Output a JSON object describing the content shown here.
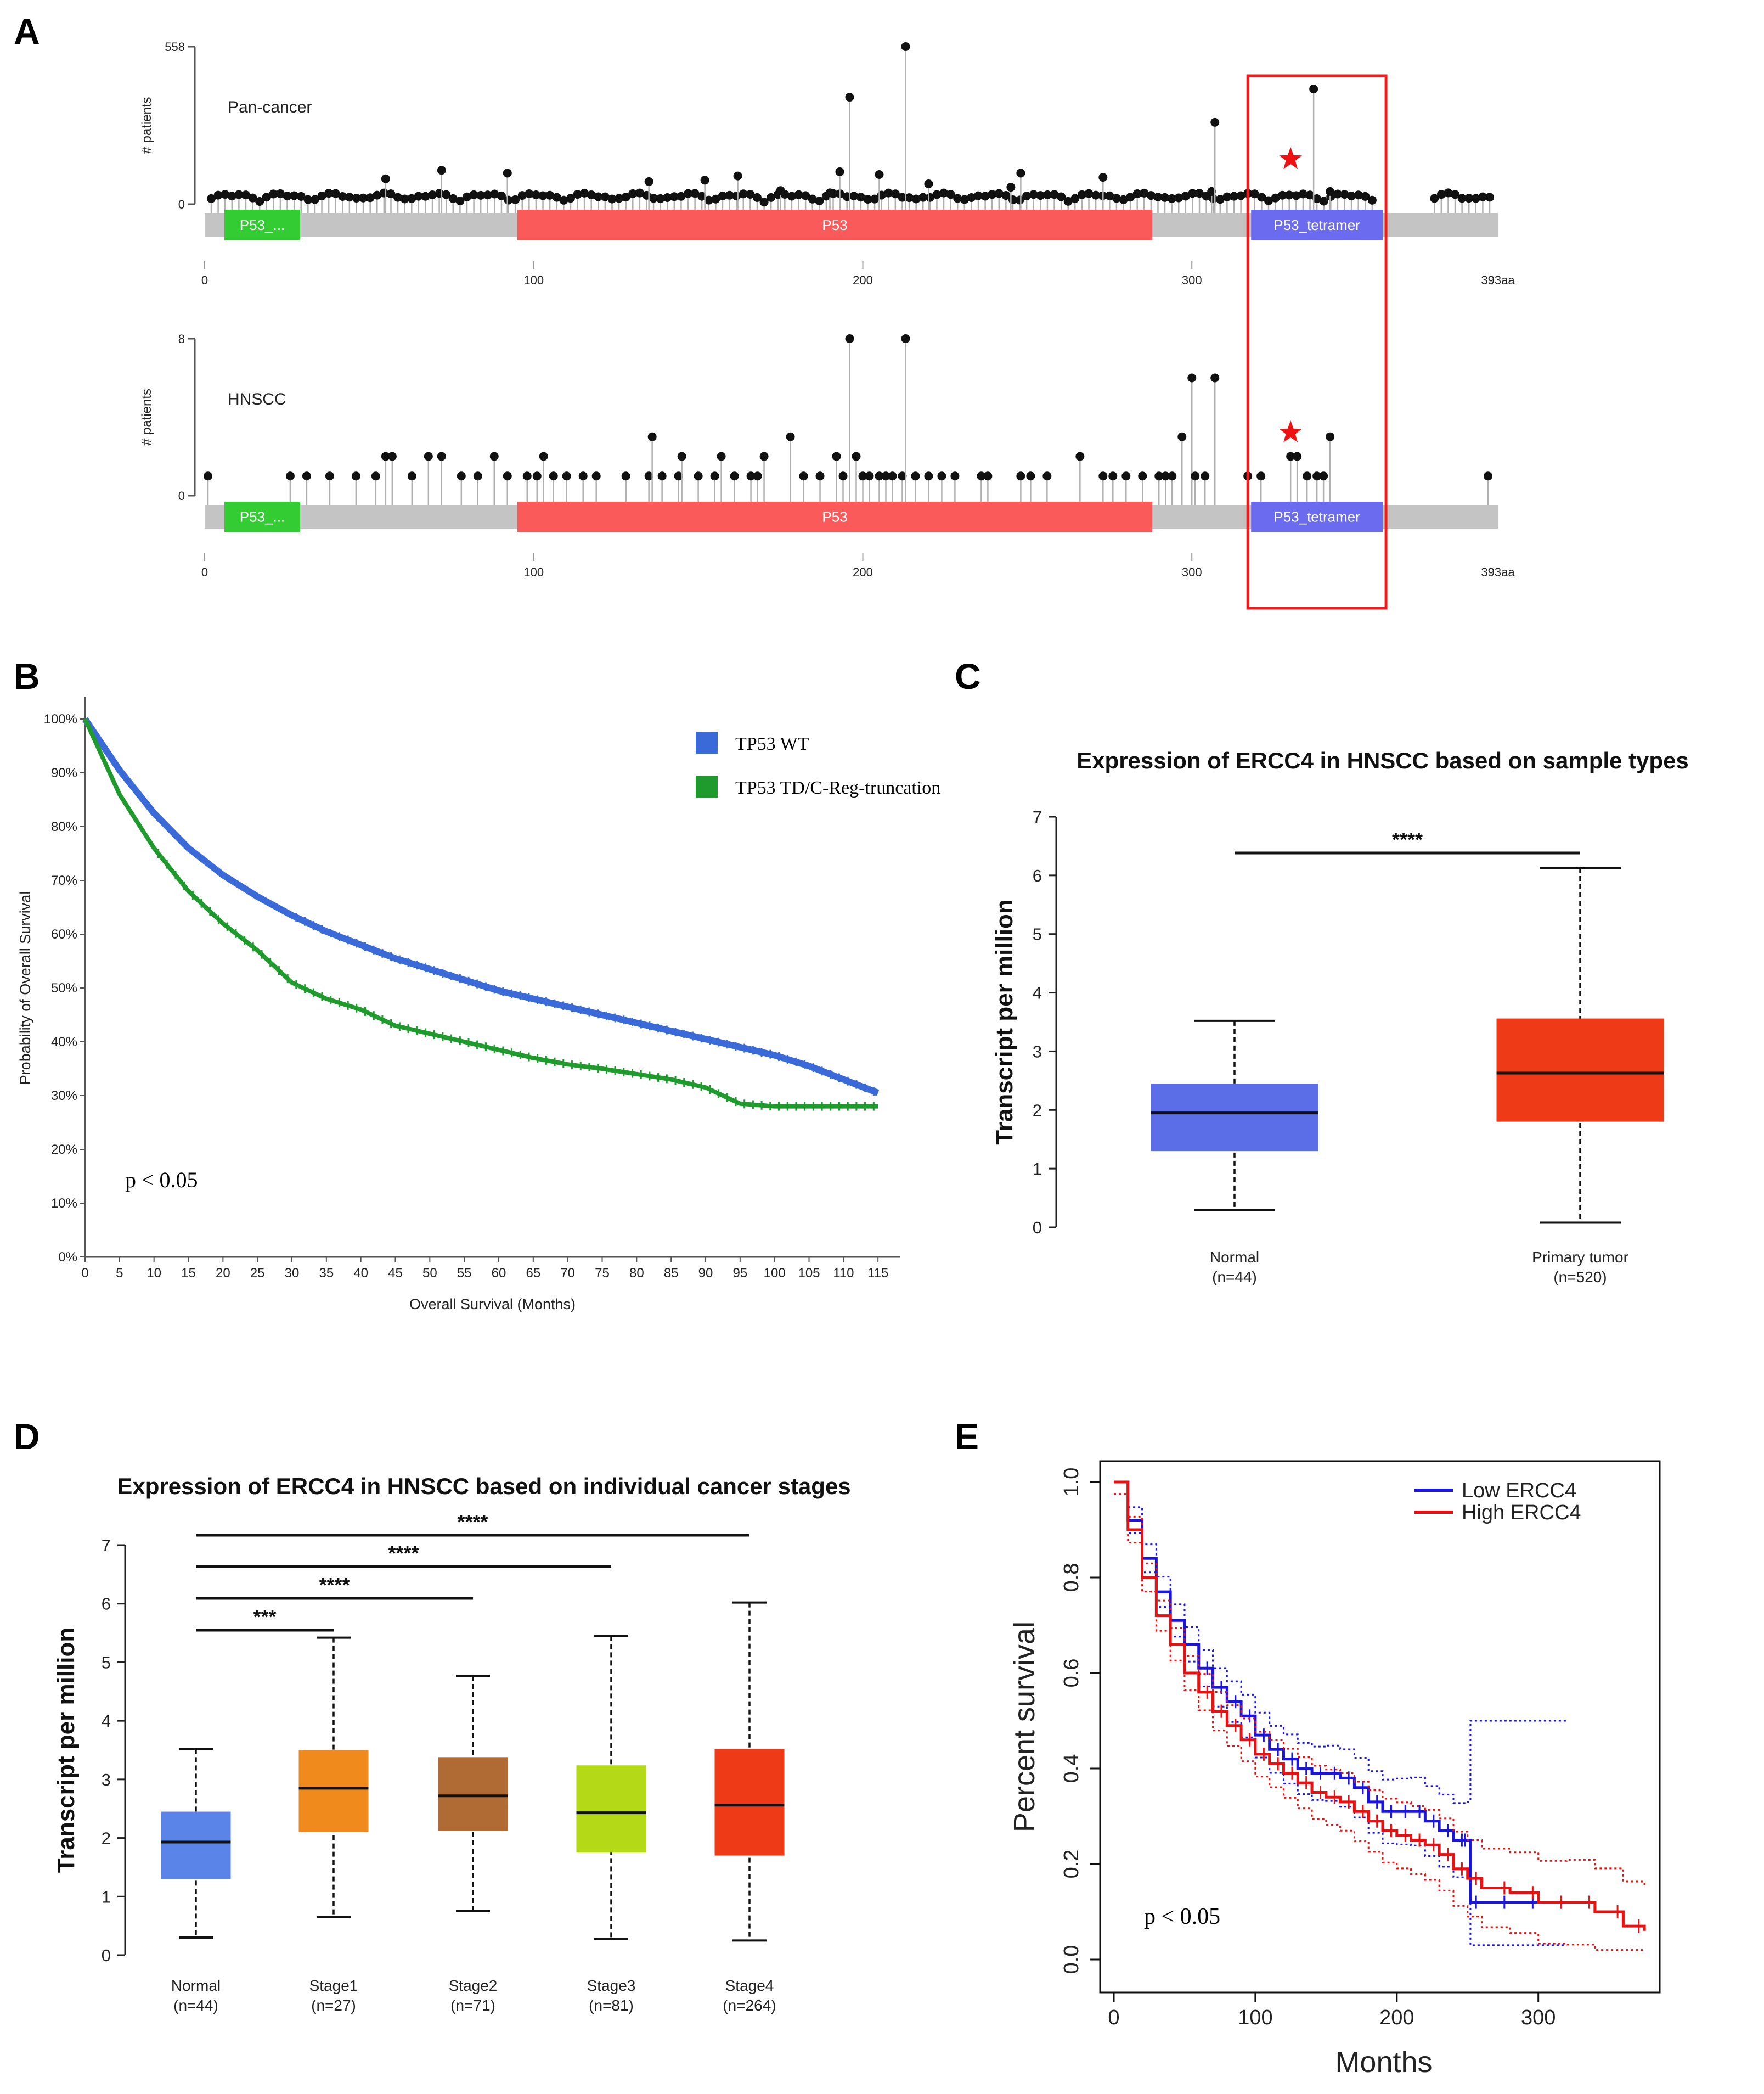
{
  "panels": {
    "A": "A",
    "B": "B",
    "C": "C",
    "D": "D",
    "E": "E"
  },
  "chart_data": [
    {
      "id": "A1",
      "type": "scatter",
      "subtype": "lollipop",
      "title": "Pan-cancer",
      "ylabel": "# patients",
      "ymax_label": "558",
      "y0_label": "0",
      "ylim": [
        0,
        558
      ],
      "xlim": [
        0,
        393
      ],
      "x_end_label": "393aa",
      "x_ticks": [
        {
          "v": 0,
          "label": "0"
        },
        {
          "v": 100,
          "label": "100"
        },
        {
          "v": 200,
          "label": "200"
        },
        {
          "v": 300,
          "label": "300"
        }
      ],
      "domains": [
        {
          "name": "P53_...",
          "start": 6,
          "end": 29,
          "color": "#33cc33"
        },
        {
          "name": "P53",
          "start": 95,
          "end": 288,
          "color": "#fb5a5a"
        },
        {
          "name": "P53_tetramer",
          "start": 318,
          "end": 358,
          "color": "#6b6bf0"
        }
      ],
      "highlight": {
        "start": 318,
        "end": 358,
        "marker_pos": 330,
        "marker": "star"
      },
      "highlighted_points": [
        {
          "pos": 175,
          "count": 48
        },
        {
          "pos": 190,
          "count": 40
        },
        {
          "pos": 193,
          "count": 115
        },
        {
          "pos": 196,
          "count": 379
        },
        {
          "pos": 205,
          "count": 105
        },
        {
          "pos": 213,
          "count": 558
        },
        {
          "pos": 220,
          "count": 72
        },
        {
          "pos": 245,
          "count": 60
        },
        {
          "pos": 248,
          "count": 110
        },
        {
          "pos": 273,
          "count": 95
        },
        {
          "pos": 306,
          "count": 45
        },
        {
          "pos": 307,
          "count": 290
        },
        {
          "pos": 337,
          "count": 408
        },
        {
          "pos": 342,
          "count": 45
        },
        {
          "pos": 72,
          "count": 120
        },
        {
          "pos": 92,
          "count": 110
        },
        {
          "pos": 55,
          "count": 90
        },
        {
          "pos": 135,
          "count": 80
        },
        {
          "pos": 152,
          "count": 85
        },
        {
          "pos": 162,
          "count": 100
        }
      ]
    },
    {
      "id": "A2",
      "type": "scatter",
      "subtype": "lollipop",
      "title": "HNSCC",
      "ylabel": "# patients",
      "ymax_label": "8",
      "y0_label": "0",
      "ylim": [
        0,
        8
      ],
      "xlim": [
        0,
        393
      ],
      "x_end_label": "393aa",
      "x_ticks": [
        {
          "v": 0,
          "label": "0"
        },
        {
          "v": 100,
          "label": "100"
        },
        {
          "v": 200,
          "label": "200"
        },
        {
          "v": 300,
          "label": "300"
        }
      ],
      "domains": [
        {
          "name": "P53_...",
          "start": 6,
          "end": 29,
          "color": "#33cc33"
        },
        {
          "name": "P53",
          "start": 95,
          "end": 288,
          "color": "#fb5a5a"
        },
        {
          "name": "P53_tetramer",
          "start": 318,
          "end": 358,
          "color": "#6b6bf0"
        }
      ],
      "highlight": {
        "start": 318,
        "end": 358,
        "marker_pos": 330,
        "marker": "star"
      },
      "points": [
        {
          "pos": 1,
          "count": 1
        },
        {
          "pos": 26,
          "count": 1
        },
        {
          "pos": 31,
          "count": 1
        },
        {
          "pos": 38,
          "count": 1
        },
        {
          "pos": 46,
          "count": 1
        },
        {
          "pos": 52,
          "count": 1
        },
        {
          "pos": 55,
          "count": 2
        },
        {
          "pos": 57,
          "count": 2
        },
        {
          "pos": 63,
          "count": 1
        },
        {
          "pos": 68,
          "count": 2
        },
        {
          "pos": 72,
          "count": 2
        },
        {
          "pos": 78,
          "count": 1
        },
        {
          "pos": 83,
          "count": 1
        },
        {
          "pos": 88,
          "count": 2
        },
        {
          "pos": 92,
          "count": 1
        },
        {
          "pos": 98,
          "count": 1
        },
        {
          "pos": 101,
          "count": 1
        },
        {
          "pos": 103,
          "count": 2
        },
        {
          "pos": 106,
          "count": 1
        },
        {
          "pos": 110,
          "count": 1
        },
        {
          "pos": 115,
          "count": 1
        },
        {
          "pos": 119,
          "count": 1
        },
        {
          "pos": 128,
          "count": 1
        },
        {
          "pos": 135,
          "count": 1
        },
        {
          "pos": 136,
          "count": 3
        },
        {
          "pos": 139,
          "count": 1
        },
        {
          "pos": 144,
          "count": 1
        },
        {
          "pos": 145,
          "count": 2
        },
        {
          "pos": 150,
          "count": 1
        },
        {
          "pos": 155,
          "count": 1
        },
        {
          "pos": 157,
          "count": 2
        },
        {
          "pos": 161,
          "count": 1
        },
        {
          "pos": 166,
          "count": 1
        },
        {
          "pos": 168,
          "count": 1
        },
        {
          "pos": 170,
          "count": 2
        },
        {
          "pos": 178,
          "count": 3
        },
        {
          "pos": 182,
          "count": 1
        },
        {
          "pos": 187,
          "count": 1
        },
        {
          "pos": 192,
          "count": 2
        },
        {
          "pos": 194,
          "count": 1
        },
        {
          "pos": 196,
          "count": 8
        },
        {
          "pos": 198,
          "count": 2
        },
        {
          "pos": 200,
          "count": 1
        },
        {
          "pos": 202,
          "count": 1
        },
        {
          "pos": 205,
          "count": 1
        },
        {
          "pos": 207,
          "count": 1
        },
        {
          "pos": 209,
          "count": 1
        },
        {
          "pos": 212,
          "count": 1
        },
        {
          "pos": 213,
          "count": 8
        },
        {
          "pos": 216,
          "count": 1
        },
        {
          "pos": 220,
          "count": 1
        },
        {
          "pos": 224,
          "count": 1
        },
        {
          "pos": 228,
          "count": 1
        },
        {
          "pos": 236,
          "count": 1
        },
        {
          "pos": 238,
          "count": 1
        },
        {
          "pos": 248,
          "count": 1
        },
        {
          "pos": 251,
          "count": 1
        },
        {
          "pos": 256,
          "count": 1
        },
        {
          "pos": 266,
          "count": 2
        },
        {
          "pos": 273,
          "count": 1
        },
        {
          "pos": 276,
          "count": 1
        },
        {
          "pos": 280,
          "count": 1
        },
        {
          "pos": 285,
          "count": 1
        },
        {
          "pos": 290,
          "count": 1
        },
        {
          "pos": 292,
          "count": 1
        },
        {
          "pos": 294,
          "count": 1
        },
        {
          "pos": 297,
          "count": 3
        },
        {
          "pos": 300,
          "count": 6
        },
        {
          "pos": 301,
          "count": 1
        },
        {
          "pos": 304,
          "count": 1
        },
        {
          "pos": 307,
          "count": 6
        },
        {
          "pos": 317,
          "count": 1
        },
        {
          "pos": 321,
          "count": 1
        },
        {
          "pos": 330,
          "count": 2
        },
        {
          "pos": 332,
          "count": 2
        },
        {
          "pos": 335,
          "count": 1
        },
        {
          "pos": 338,
          "count": 1
        },
        {
          "pos": 340,
          "count": 1
        },
        {
          "pos": 342,
          "count": 3
        },
        {
          "pos": 390,
          "count": 1
        }
      ]
    },
    {
      "id": "B",
      "type": "line",
      "subtype": "kaplan-meier",
      "xlabel": "Overall Survival (Months)",
      "ylabel": "Probability of Overall Survival",
      "xlim": [
        0,
        120
      ],
      "ylim": [
        0,
        100
      ],
      "x_ticks": [
        "0",
        "5",
        "10",
        "15",
        "20",
        "25",
        "30",
        "35",
        "40",
        "45",
        "50",
        "55",
        "60",
        "65",
        "70",
        "75",
        "80",
        "85",
        "90",
        "95",
        "100",
        "105",
        "110",
        "115"
      ],
      "y_ticks": [
        "0%",
        "10%",
        "20%",
        "30%",
        "40%",
        "50%",
        "60%",
        "70%",
        "80%",
        "90%",
        "100%"
      ],
      "series": [
        {
          "name": "TP53 WT",
          "color": "#3a6ad8",
          "x": [
            0,
            5,
            10,
            15,
            20,
            25,
            30,
            35,
            40,
            45,
            50,
            55,
            60,
            65,
            70,
            75,
            80,
            85,
            90,
            95,
            100,
            105,
            110,
            115
          ],
          "y": [
            100,
            90.5,
            82.5,
            76,
            71,
            67,
            63.5,
            60.5,
            58,
            55.5,
            53.5,
            51.5,
            49.5,
            48,
            46.5,
            45,
            43.5,
            42,
            40.5,
            39,
            37.5,
            35.5,
            33,
            30.5
          ]
        },
        {
          "name": "TP53 TD/C-Reg-truncation",
          "color": "#1f9a2c",
          "x": [
            0,
            5,
            10,
            15,
            20,
            25,
            30,
            35,
            40,
            45,
            50,
            55,
            60,
            65,
            70,
            75,
            80,
            85,
            90,
            95,
            100,
            105,
            110,
            115
          ],
          "y": [
            100,
            86,
            76,
            68,
            62,
            57,
            51,
            48,
            46,
            43,
            41.5,
            40,
            38.5,
            37,
            35.8,
            35,
            34,
            33,
            31.5,
            28.5,
            28,
            28,
            28,
            28
          ]
        }
      ],
      "annotation": "p < 0.05"
    },
    {
      "id": "C",
      "type": "boxplot",
      "title": "Expression of ERCC4  in HNSCC based on sample types",
      "ylabel": "Transcript per million",
      "ylim": [
        0,
        7
      ],
      "y_ticks": [
        "0",
        "1",
        "2",
        "3",
        "4",
        "5",
        "6",
        "7"
      ],
      "categories": [
        {
          "name": "Normal",
          "n": "(n=44)",
          "color": "#5b6ee8",
          "min": 0.3,
          "q1": 1.3,
          "median": 1.95,
          "q3": 2.45,
          "max": 3.52
        },
        {
          "name": "Primary tumor",
          "n": "(n=520)",
          "color": "#ee3a17",
          "min": 0.08,
          "q1": 1.8,
          "median": 2.63,
          "q3": 3.56,
          "max": 6.13
        }
      ],
      "significance": [
        {
          "from": 0,
          "to": 1,
          "label": "****"
        }
      ]
    },
    {
      "id": "D",
      "type": "boxplot",
      "title": "Expression of ERCC4  in HNSCC based on individual cancer stages",
      "ylabel": "Transcript per million",
      "ylim": [
        0,
        7
      ],
      "y_ticks": [
        "0",
        "1",
        "2",
        "3",
        "4",
        "5",
        "6",
        "7"
      ],
      "categories": [
        {
          "name": "Normal",
          "n": "(n=44)",
          "color": "#5b84e8",
          "min": 0.3,
          "q1": 1.3,
          "median": 1.93,
          "q3": 2.45,
          "max": 3.52
        },
        {
          "name": "Stage1",
          "n": "(n=27)",
          "color": "#f08a1c",
          "min": 0.65,
          "q1": 2.1,
          "median": 2.85,
          "q3": 3.5,
          "max": 5.42
        },
        {
          "name": "Stage2",
          "n": "(n=71)",
          "color": "#b06b34",
          "min": 0.75,
          "q1": 2.12,
          "median": 2.72,
          "q3": 3.38,
          "max": 4.77
        },
        {
          "name": "Stage3",
          "n": "(n=81)",
          "color": "#b3d917",
          "min": 0.28,
          "q1": 1.75,
          "median": 2.43,
          "q3": 3.24,
          "max": 5.45
        },
        {
          "name": "Stage4",
          "n": "(n=264)",
          "color": "#ee3a17",
          "min": 0.25,
          "q1": 1.7,
          "median": 2.56,
          "q3": 3.52,
          "max": 6.02
        }
      ],
      "significance": [
        {
          "from": 0,
          "to": 1,
          "label": "***"
        },
        {
          "from": 0,
          "to": 2,
          "label": "****"
        },
        {
          "from": 0,
          "to": 3,
          "label": "****"
        },
        {
          "from": 0,
          "to": 4,
          "label": "****"
        }
      ]
    },
    {
      "id": "E",
      "type": "line",
      "subtype": "kaplan-meier",
      "xlabel": "Months",
      "ylabel": "Percent survival",
      "xlim": [
        0,
        380
      ],
      "ylim": [
        0,
        1
      ],
      "x_ticks": [
        "0",
        "100",
        "200",
        "300"
      ],
      "y_ticks": [
        "0.0",
        "0.2",
        "0.4",
        "0.6",
        "0.8",
        "1.0"
      ],
      "series": [
        {
          "name": "Low ERCC4",
          "color": "#1a14e0",
          "x": [
            0,
            10,
            20,
            30,
            40,
            50,
            60,
            70,
            80,
            90,
            100,
            110,
            120,
            130,
            140,
            150,
            160,
            170,
            180,
            190,
            200,
            210,
            220,
            230,
            240,
            250,
            252,
            260,
            280,
            300,
            320
          ],
          "y": [
            1.0,
            0.92,
            0.84,
            0.77,
            0.71,
            0.66,
            0.61,
            0.57,
            0.54,
            0.51,
            0.47,
            0.44,
            0.42,
            0.4,
            0.39,
            0.39,
            0.38,
            0.36,
            0.33,
            0.31,
            0.31,
            0.31,
            0.29,
            0.27,
            0.25,
            0.25,
            0.12,
            0.12,
            0.12,
            0.12,
            0.12
          ]
        },
        {
          "name": "High ERCC4",
          "color": "#e81010",
          "x": [
            0,
            10,
            20,
            30,
            40,
            50,
            60,
            70,
            80,
            90,
            100,
            110,
            120,
            130,
            140,
            150,
            160,
            170,
            180,
            190,
            200,
            210,
            220,
            230,
            240,
            250,
            260,
            280,
            300,
            320,
            340,
            360,
            375
          ],
          "y": [
            1.0,
            0.9,
            0.8,
            0.72,
            0.66,
            0.6,
            0.56,
            0.52,
            0.49,
            0.46,
            0.43,
            0.41,
            0.39,
            0.37,
            0.35,
            0.34,
            0.33,
            0.31,
            0.29,
            0.27,
            0.26,
            0.25,
            0.24,
            0.22,
            0.19,
            0.17,
            0.15,
            0.14,
            0.12,
            0.12,
            0.1,
            0.07,
            0.06
          ]
        }
      ],
      "annotation": "p < 0.05"
    }
  ]
}
